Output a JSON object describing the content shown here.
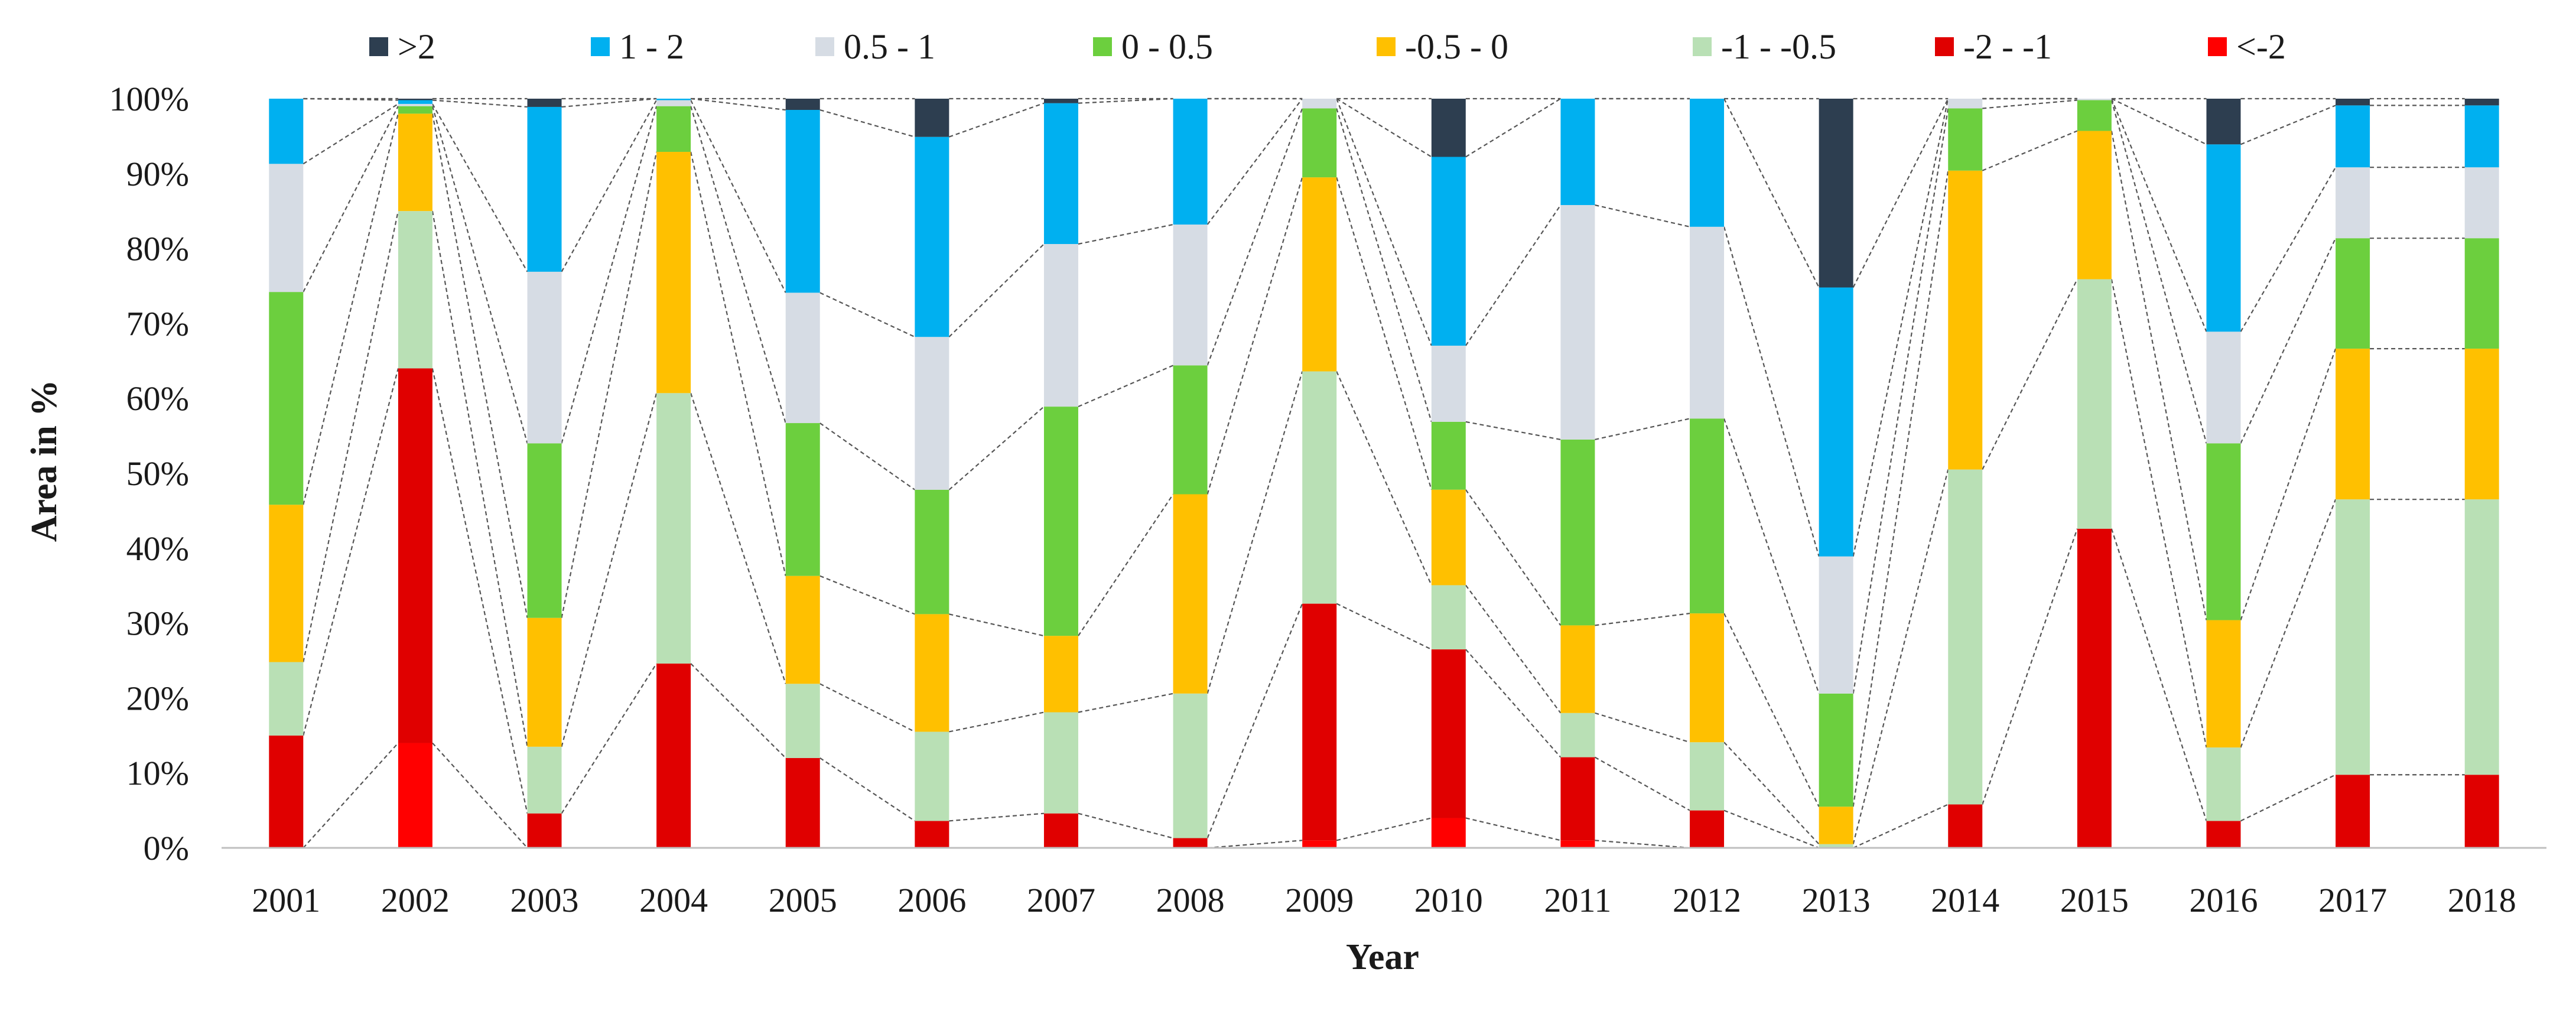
{
  "chart_data": {
    "type": "stacked-bar-100",
    "title": "",
    "xlabel": "Year",
    "ylabel": "Area in %",
    "ylim": [
      0,
      100
    ],
    "yticks": [
      "0%",
      "10%",
      "20%",
      "30%",
      "40%",
      "50%",
      "60%",
      "70%",
      "80%",
      "90%",
      "100%"
    ],
    "grid": false,
    "legend_position": "top",
    "connector_lines": "dashed",
    "categories": [
      "2001",
      "2002",
      "2003",
      "2004",
      "2005",
      "2006",
      "2007",
      "2008",
      "2009",
      "2010",
      "2011",
      "2012",
      "2013",
      "2014",
      "2015",
      "2016",
      "2017",
      "2018"
    ],
    "series": [
      {
        "name": "<-2",
        "color": "#ff0000",
        "values": [
          0,
          14,
          0,
          0,
          0,
          0,
          0,
          0,
          1,
          4,
          1,
          0,
          0,
          0,
          0,
          0,
          0,
          0
        ]
      },
      {
        "name": "-2 - -1",
        "color": "#e00000",
        "values": [
          15,
          50,
          4.6,
          24.6,
          12,
          3.6,
          4.6,
          1.3,
          31.6,
          22.6,
          11.1,
          5,
          0,
          5.8,
          42.6,
          3.6,
          9.8,
          9.8
        ]
      },
      {
        "name": "-1 - -0.5",
        "color": "#b9e0b5",
        "values": [
          9.8,
          21,
          8.9,
          36.1,
          9.9,
          11.9,
          13.5,
          19.3,
          31,
          8.6,
          5.9,
          9.1,
          0.5,
          44.7,
          33.3,
          9.8,
          36.9,
          36.9
        ]
      },
      {
        "name": "-0.5 - 0",
        "color": "#ffc000",
        "values": [
          21,
          13,
          17.2,
          32.2,
          14.4,
          15.7,
          10.2,
          26.6,
          25.9,
          12.8,
          11.7,
          17.2,
          5,
          39.9,
          19.8,
          17,
          20.2,
          20.2
        ]
      },
      {
        "name": "0 - 0.5",
        "color": "#6ccf3e",
        "values": [
          28.4,
          1,
          23.3,
          6.1,
          20.4,
          16.6,
          30.6,
          17.2,
          9.2,
          9.1,
          24.8,
          26,
          15.1,
          8.3,
          4.1,
          23.6,
          14.8,
          14.8
        ]
      },
      {
        "name": "0.5 - 1",
        "color": "#d6dce4",
        "values": [
          17.1,
          0.3,
          22.9,
          0.8,
          17.4,
          20.4,
          21.7,
          18.8,
          1.3,
          10.2,
          31.3,
          25.6,
          18.3,
          1.3,
          0.2,
          14.9,
          9.5,
          9.5
        ]
      },
      {
        "name": "1 - 2",
        "color": "#00b0f0",
        "values": [
          8.7,
          0.5,
          22,
          0.2,
          24.4,
          26.7,
          18.8,
          16.8,
          0,
          25.3,
          14.2,
          17.1,
          35.9,
          0,
          0,
          25,
          8.3,
          8.3
        ]
      },
      {
        "name": ">2",
        "color": "#2d3e50",
        "values": [
          0,
          0.2,
          1.1,
          0,
          1.5,
          5.1,
          0.6,
          0,
          0,
          7.8,
          0,
          0,
          25.2,
          0,
          0,
          6.1,
          0.9,
          0.9
        ]
      }
    ],
    "legend_order": [
      ">2",
      "1 - 2",
      "0.5 - 1",
      "0 - 0.5",
      "-0.5 - 0",
      "-1 - -0.5",
      "-2 - -1",
      "<-2"
    ]
  }
}
